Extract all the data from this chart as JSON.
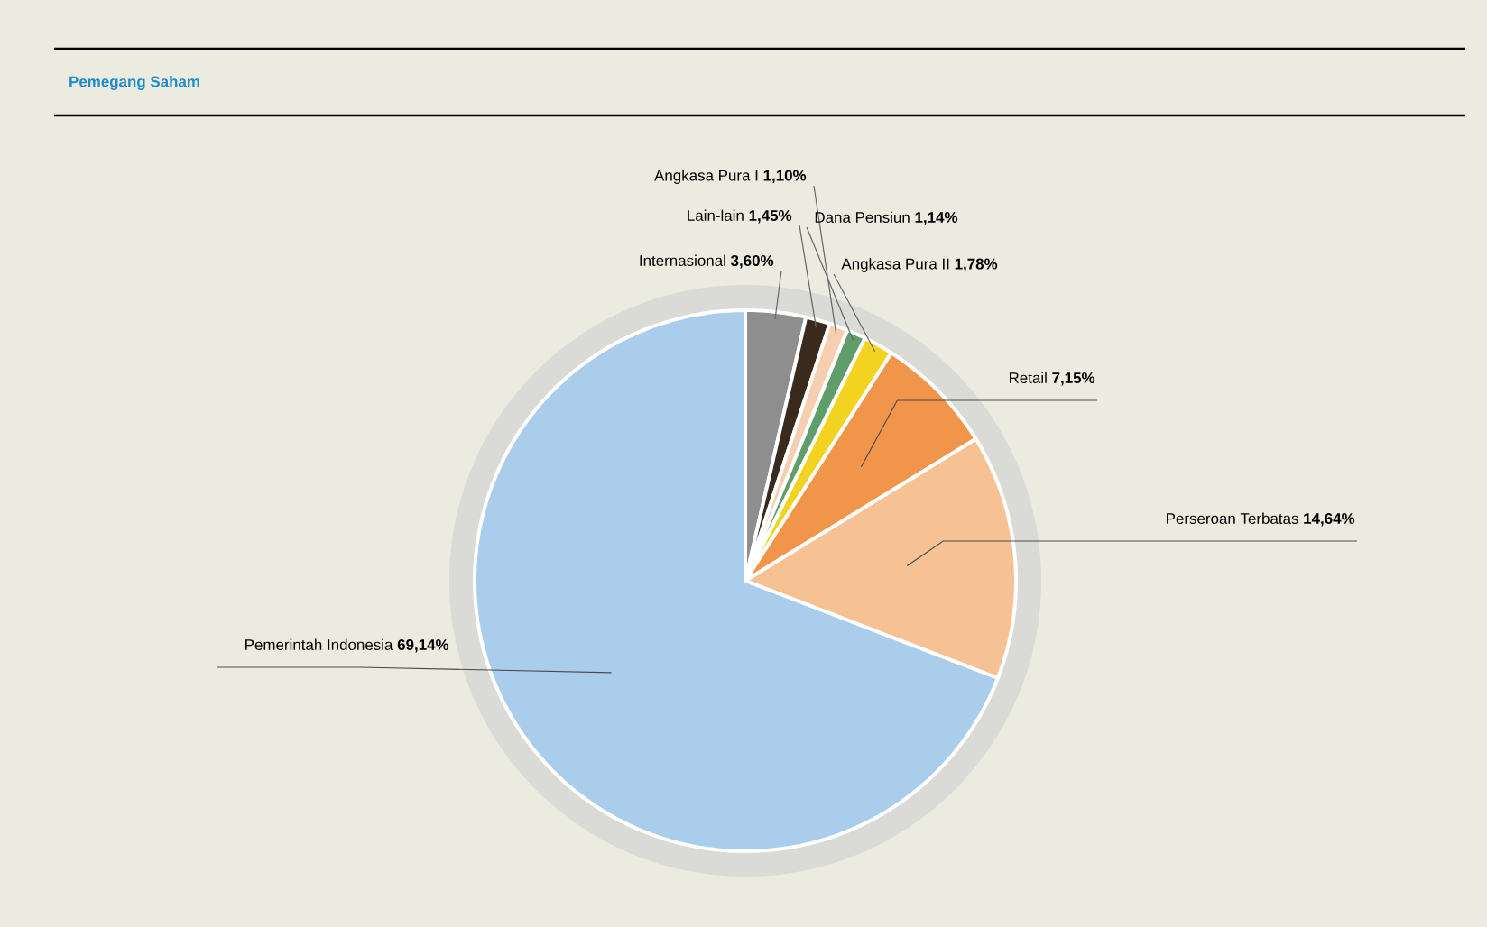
{
  "chart_data": {
    "type": "pie",
    "title": "Pemegang Saham",
    "categories": [
      "Internasional",
      "Lain-lain",
      "Angkasa Pura I",
      "Dana Pensiun",
      "Angkasa Pura II",
      "Retail",
      "Perseroan Terbatas",
      "Pemerintah Indonesia"
    ],
    "values": [
      3.6,
      1.45,
      1.1,
      1.14,
      1.78,
      7.15,
      14.64,
      69.14
    ],
    "value_labels": [
      "**3,60%**",
      "**1,45%**",
      "**1,10%**",
      "**1,14%**",
      "**1,78%**",
      "**7,15%**",
      "**14,64%**",
      "**69,14%**"
    ],
    "colors": [
      "#8e8e8e",
      "#3a2a1e",
      "#f6cfb0",
      "#5f9e6b",
      "#f2d320",
      "#f0954a",
      "#f7c293",
      "#a9cdea"
    ]
  }
}
